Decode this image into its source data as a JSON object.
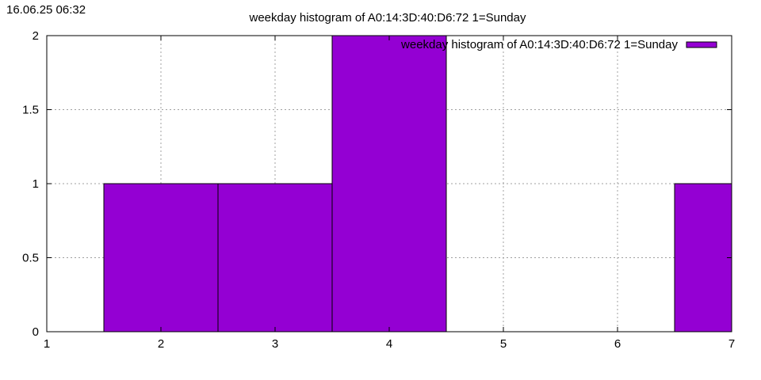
{
  "timestamp": "16.06.25 06:32",
  "chart_data": {
    "type": "bar",
    "title": "weekday histogram of A0:14:3D:40:D6:72 1=Sunday",
    "legend": {
      "label": "weekday histogram of A0:14:3D:40:D6:72 1=Sunday",
      "position": "top-right",
      "color": "#9400d3"
    },
    "xlabel": "",
    "ylabel": "",
    "xlim": [
      1,
      7
    ],
    "ylim": [
      0,
      2
    ],
    "x_ticks": [
      "1",
      "2",
      "3",
      "4",
      "5",
      "6",
      "7"
    ],
    "y_ticks": [
      "0",
      "0.5",
      "1",
      "1.5",
      "2"
    ],
    "grid": true,
    "bar_width": 1,
    "series": [
      {
        "name": "weekday histogram of A0:14:3D:40:D6:72 1=Sunday",
        "color": "#9400d3",
        "points": [
          {
            "x": 2,
            "y": 1
          },
          {
            "x": 3,
            "y": 1
          },
          {
            "x": 4,
            "y": 2
          },
          {
            "x": 7,
            "y": 1
          }
        ]
      }
    ]
  }
}
